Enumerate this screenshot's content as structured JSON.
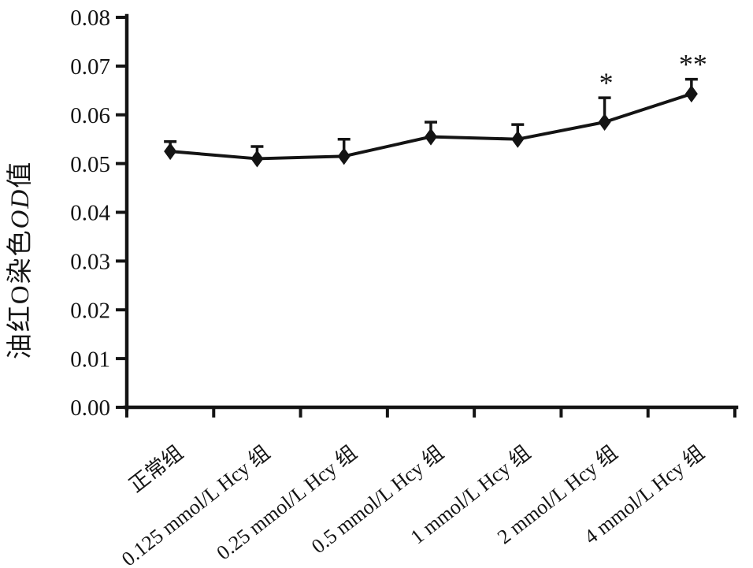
{
  "figure": {
    "background": "#ffffff",
    "ink_color": "#141414"
  },
  "chart_data": {
    "type": "line",
    "title": "",
    "xlabel": "",
    "ylabel": "油红O染色OD值",
    "ylabel_parts": {
      "prefix": "油红O染色",
      "italic": "OD",
      "suffix": "值"
    },
    "categories": [
      "正常组",
      "0.125 mmol/L Hcy 组",
      "0.25 mmol/L Hcy 组",
      "0.5 mmol/L Hcy 组",
      "1 mmol/L Hcy 组",
      "2 mmol/L Hcy 组",
      "4 mmol/L Hcy 组"
    ],
    "series": [
      {
        "name": "油红O染色OD值",
        "marker": "diamond",
        "values": [
          0.0525,
          0.051,
          0.0515,
          0.0555,
          0.055,
          0.0585,
          0.0643
        ],
        "errors_up": [
          0.002,
          0.0025,
          0.0035,
          0.003,
          0.003,
          0.005,
          0.003
        ]
      }
    ],
    "annotations": [
      {
        "category_index": 5,
        "text": "*"
      },
      {
        "category_index": 6,
        "text": "**"
      }
    ],
    "ylim": [
      0,
      0.08
    ],
    "ytick_step": 0.01,
    "ytick_labels": [
      "0.00",
      "0.01",
      "0.02",
      "0.03",
      "0.04",
      "0.05",
      "0.06",
      "0.07",
      "0.08"
    ],
    "grid": false,
    "legend": "none",
    "x_tick_label_rotation_deg": -38,
    "error_bar_direction": "up-only"
  }
}
